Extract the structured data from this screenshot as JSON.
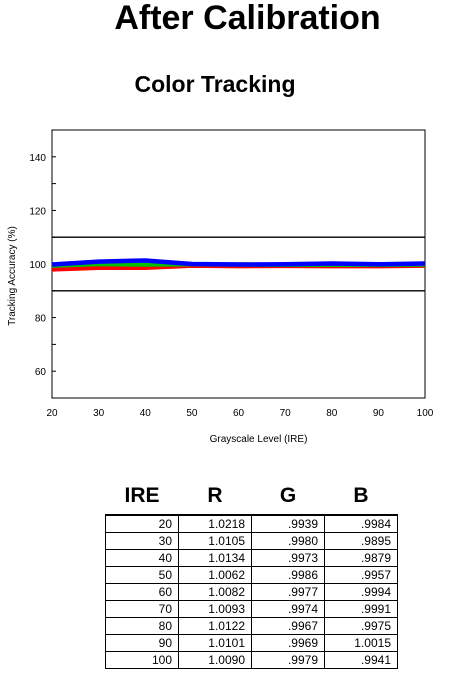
{
  "page": {
    "title": "After Calibration"
  },
  "chart_data": {
    "type": "line",
    "title": "Color Tracking",
    "xlabel": "Grayscale Level (IRE)",
    "ylabel": "Tracking Accuracy (%)",
    "x": [
      20,
      30,
      40,
      50,
      60,
      70,
      80,
      90,
      100
    ],
    "xlim": [
      20,
      100
    ],
    "ylim": [
      50,
      150
    ],
    "yticks": [
      60,
      80,
      100,
      120,
      140
    ],
    "reference_lines": [
      90,
      110
    ],
    "grid": false,
    "series": [
      {
        "color": "#ff0000",
        "values": [
          98.0,
          98.6,
          98.6,
          99.4,
          99.2,
          99.3,
          99.2,
          99.2,
          99.4
        ]
      },
      {
        "color": "#00c000",
        "values": [
          99.4,
          100.0,
          99.8,
          99.9,
          99.8,
          99.7,
          99.7,
          99.7,
          99.8
        ]
      },
      {
        "color": "#0000ff",
        "values": [
          99.8,
          100.9,
          101.3,
          100.0,
          99.8,
          99.9,
          100.2,
          99.9,
          100.2
        ]
      }
    ]
  },
  "table": {
    "headers": [
      "IRE",
      "R",
      "G",
      "B"
    ],
    "rows": [
      [
        "20",
        "1.0218",
        ".9939",
        ".9984"
      ],
      [
        "30",
        "1.0105",
        ".9980",
        ".9895"
      ],
      [
        "40",
        "1.0134",
        ".9973",
        ".9879"
      ],
      [
        "50",
        "1.0062",
        ".9986",
        ".9957"
      ],
      [
        "60",
        "1.0082",
        ".9977",
        ".9994"
      ],
      [
        "70",
        "1.0093",
        ".9974",
        ".9991"
      ],
      [
        "80",
        "1.0122",
        ".9967",
        ".9975"
      ],
      [
        "90",
        "1.0101",
        ".9969",
        "1.0015"
      ],
      [
        "100",
        "1.0090",
        ".9979",
        ".9941"
      ]
    ]
  }
}
